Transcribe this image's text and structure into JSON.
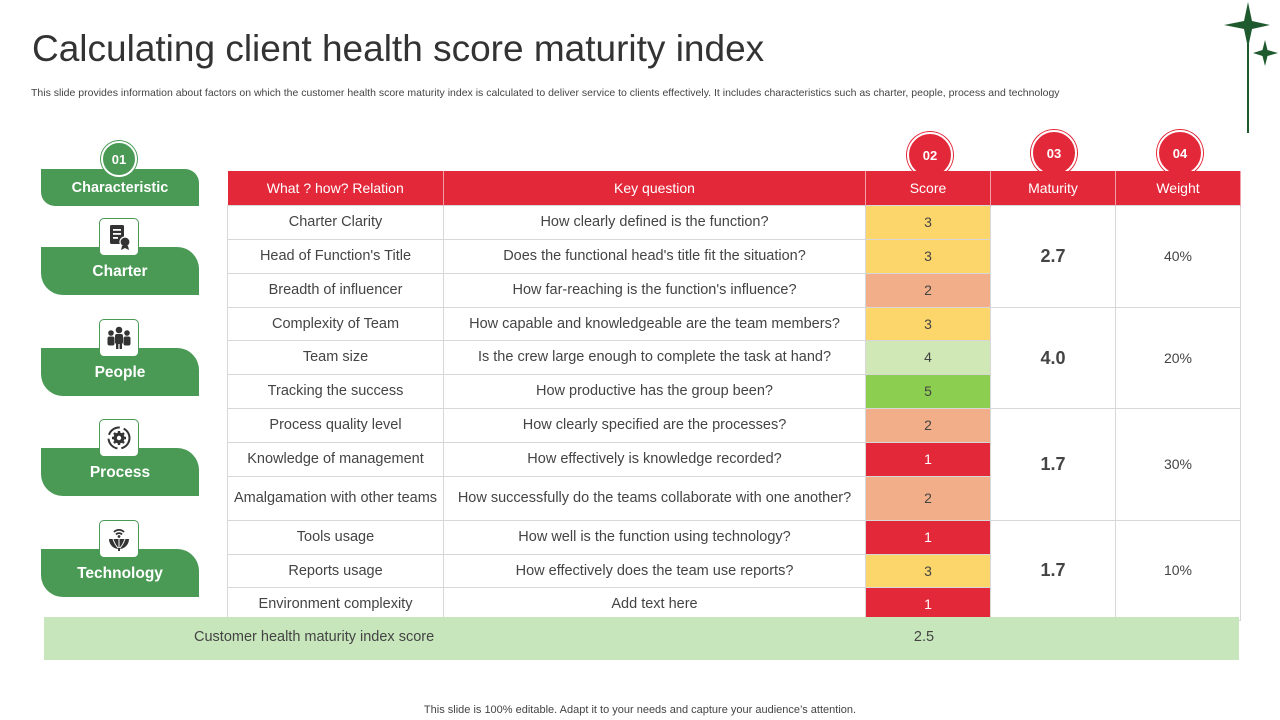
{
  "title": "Calculating client health score maturity index",
  "subtitle": "This slide provides information about factors on which the customer health score maturity index is calculated to deliver service to clients effectively. It includes characteristics such as charter, people, process and technology",
  "footer": "This slide is 100% editable. Adapt it to your needs and capture your audience’s attention.",
  "colors": {
    "accent_green": "#4a9a55",
    "accent_red": "#e3283a",
    "total_bg": "#c7e6bb"
  },
  "left": {
    "header_number": "01",
    "header_label": "Characteristic",
    "categories": [
      {
        "label": "Charter",
        "icon": "certificate-document-icon"
      },
      {
        "label": "People",
        "icon": "team-people-icon"
      },
      {
        "label": "Process",
        "icon": "gear-cycle-icon"
      },
      {
        "label": "Technology",
        "icon": "wifi-globe-icon"
      }
    ]
  },
  "table": {
    "column_numbers": [
      "02",
      "03",
      "04"
    ],
    "headers": [
      "What ? how? Relation",
      "Key question",
      "Score",
      "Maturity",
      "Weight"
    ],
    "groups": [
      {
        "maturity": "2.7",
        "weight": "40%",
        "rows": [
          {
            "relation": "Charter Clarity",
            "question": "How clearly defined is the function?",
            "score": 3
          },
          {
            "relation": "Head of Function's Title",
            "question": "Does the functional head's title fit the situation?",
            "score": 3
          },
          {
            "relation": "Breadth of influencer",
            "question": "How far-reaching is the function's influence?",
            "score": 2
          }
        ]
      },
      {
        "maturity": "4.0",
        "weight": "20%",
        "rows": [
          {
            "relation": "Complexity of Team",
            "question": "How capable and knowledgeable  are the team members?",
            "score": 3
          },
          {
            "relation": "Team size",
            "question": "Is the crew large enough to complete the task at hand?",
            "score": 4
          },
          {
            "relation": "Tracking the success",
            "question": "How productive has the group been?",
            "score": 5
          }
        ]
      },
      {
        "maturity": "1.7",
        "weight": "30%",
        "rows": [
          {
            "relation": "Process quality level",
            "question": "How clearly specified are the processes?",
            "score": 2
          },
          {
            "relation": "Knowledge of management",
            "question": "How effectively  is knowledge recorded?",
            "score": 1
          },
          {
            "relation": "Amalgamation with other teams",
            "question": "How successfully do the teams collaborate with one another?",
            "score": 2
          }
        ]
      },
      {
        "maturity": "1.7",
        "weight": "10%",
        "rows": [
          {
            "relation": "Tools usage",
            "question": "How well is the function using technology?",
            "score": 1
          },
          {
            "relation": "Reports usage",
            "question": "How effectively does the team use reports?",
            "score": 3
          },
          {
            "relation": "Environment complexity",
            "question": "Add text here",
            "score": 1
          }
        ]
      }
    ]
  },
  "total": {
    "label": "Customer health maturity index score",
    "value": "2.5"
  }
}
